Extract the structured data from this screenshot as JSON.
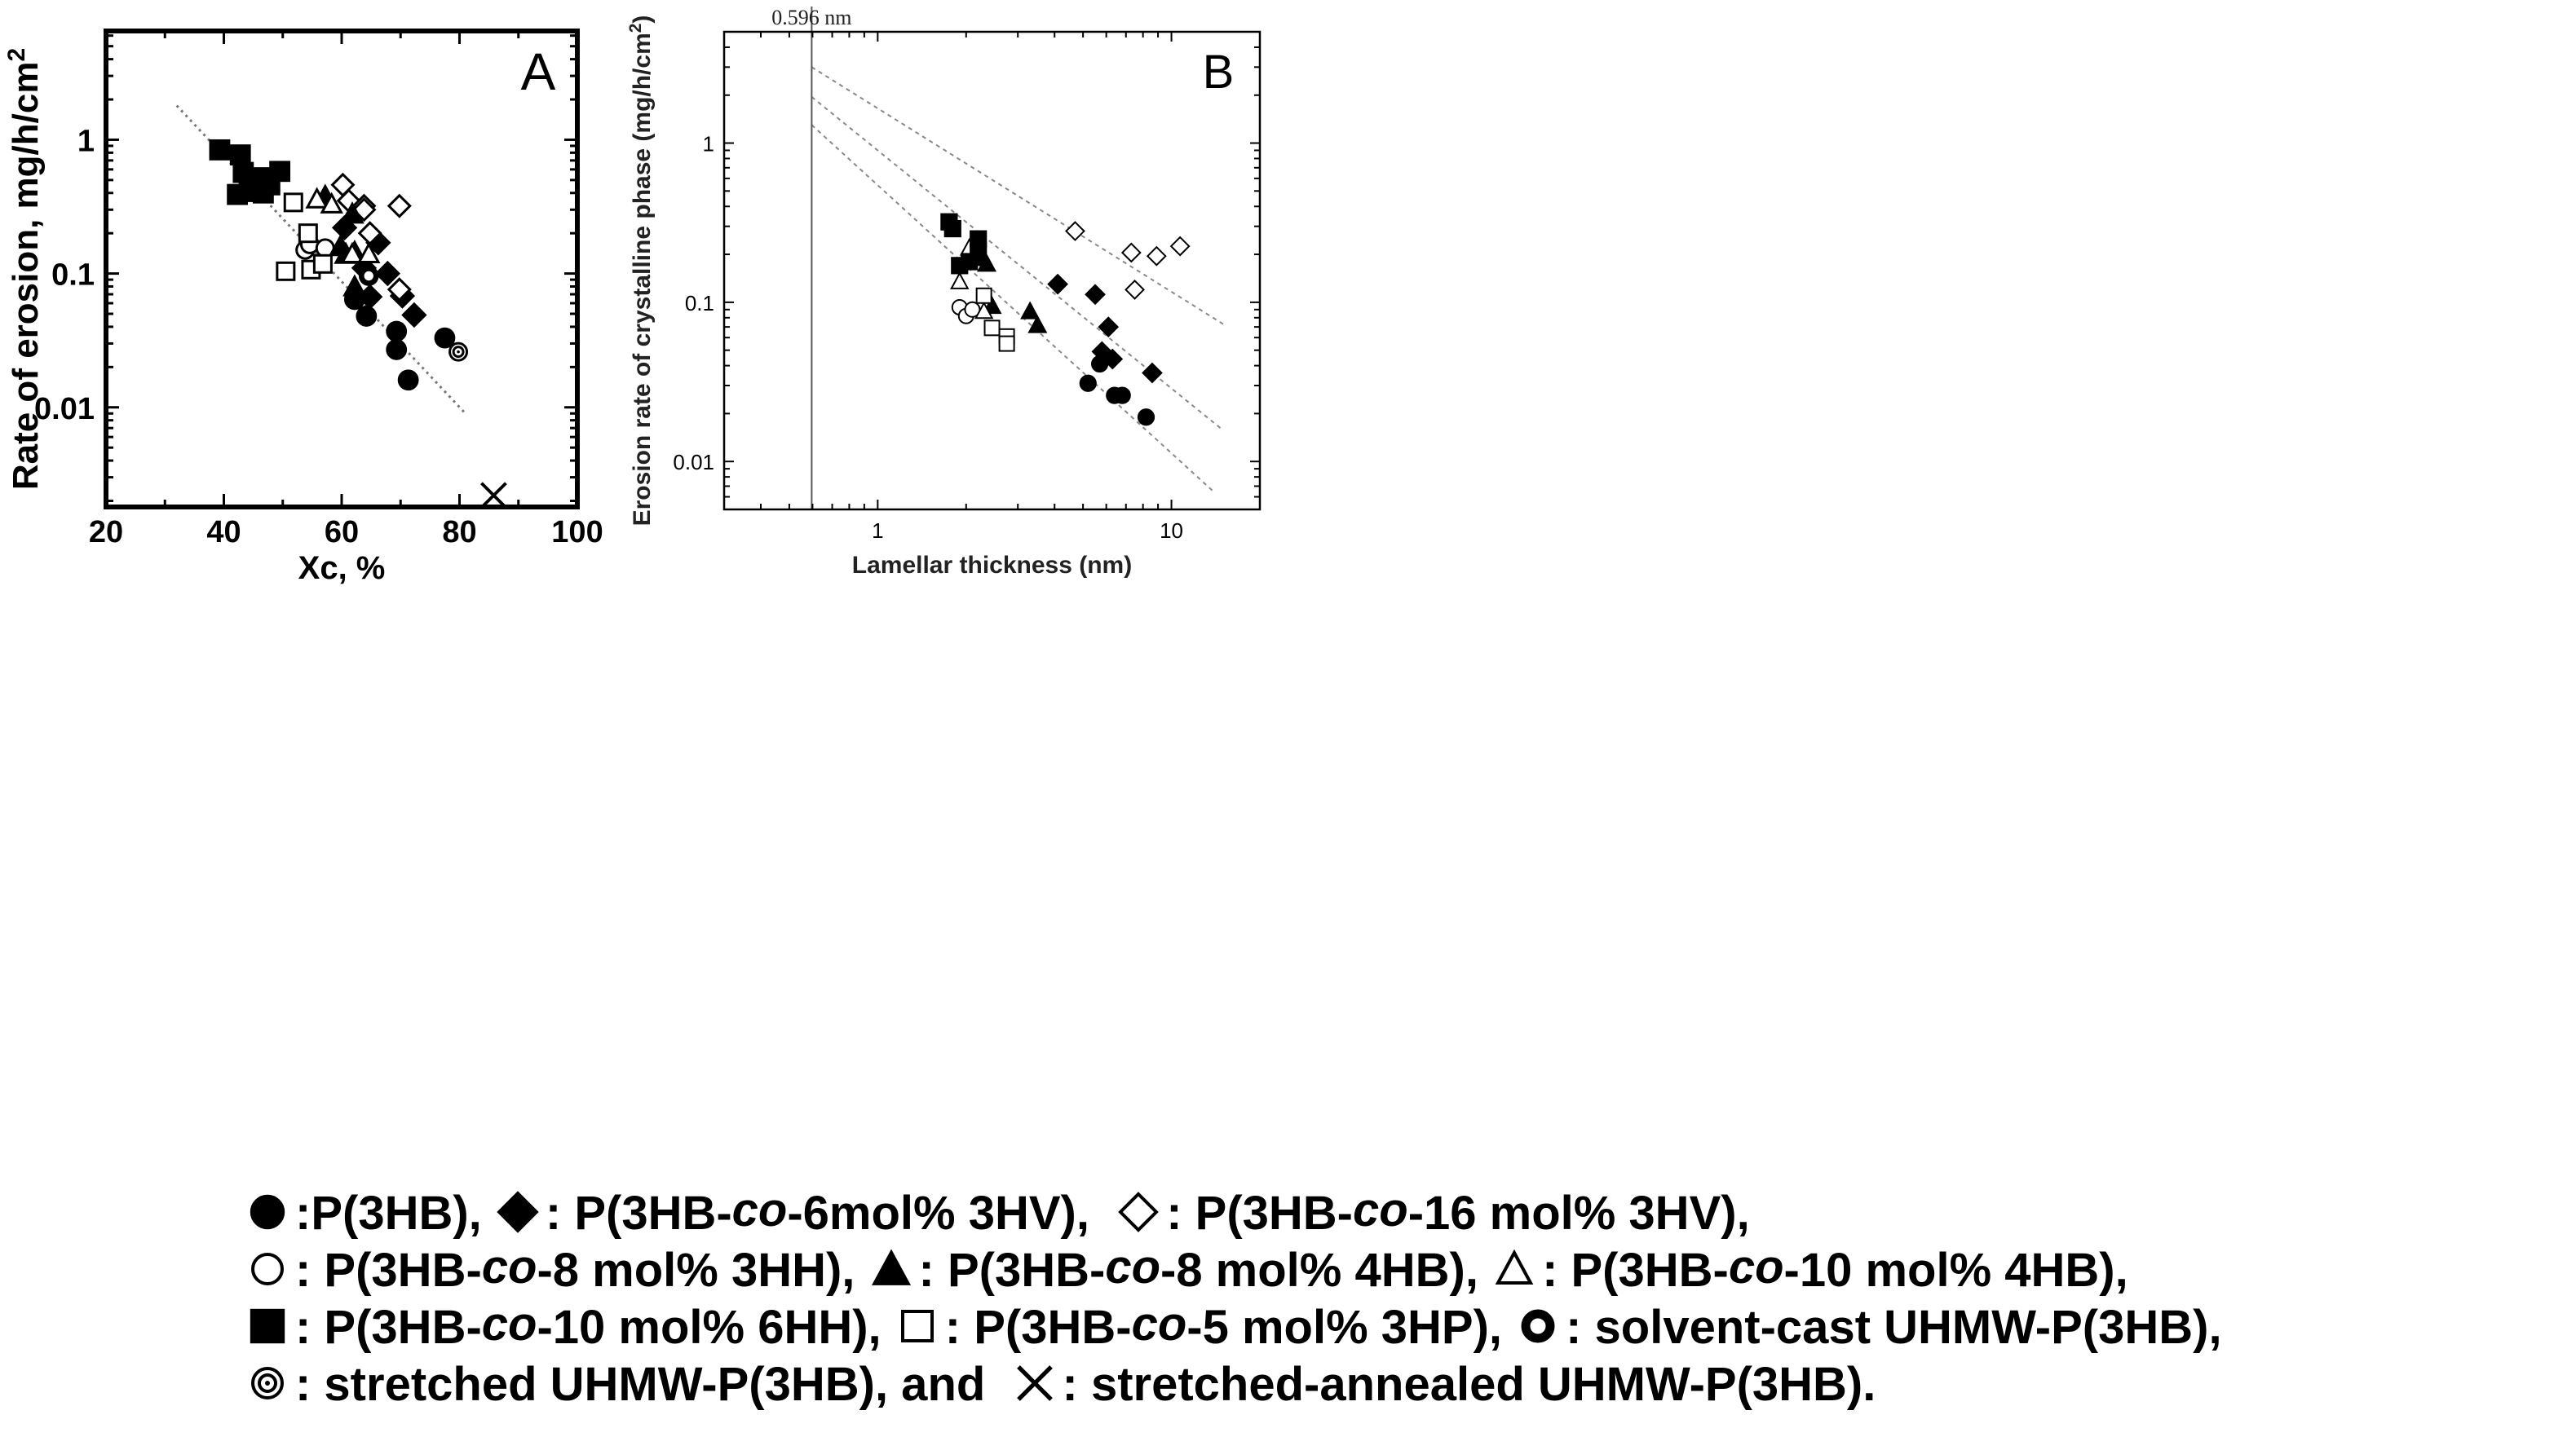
{
  "chart_data": [
    {
      "panel": "A",
      "type": "scatter",
      "xscale": "linear",
      "yscale": "log",
      "xlabel": "Xc, %",
      "ylabel": "Rate of erosion, mg/h/cm",
      "ylabel_sup": "2",
      "xlim": [
        20,
        100
      ],
      "ylim": [
        0.0018,
        6.5
      ],
      "xticks": [
        20,
        40,
        60,
        80,
        100
      ],
      "xtick_labels": [
        "20",
        "40",
        "60",
        "80",
        "100"
      ],
      "yticks": [
        0.01,
        0.1,
        1
      ],
      "ytick_labels": [
        "0.01",
        "0.1",
        "1"
      ],
      "fit_lines": [
        {
          "x": [
            32,
            81
          ],
          "y": [
            1.8,
            0.009
          ]
        }
      ],
      "series": [
        {
          "name": "P(3HB)",
          "marker": "filled-circle",
          "points": [
            [
              62.2,
              0.064
            ],
            [
              64.2,
              0.048
            ],
            [
              69.3,
              0.037
            ],
            [
              69.3,
              0.027
            ],
            [
              71.3,
              0.016
            ],
            [
              77.5,
              0.033
            ]
          ]
        },
        {
          "name": "P(3HB-co-6mol% 3HV)",
          "marker": "filled-diamond",
          "points": [
            [
              60.5,
              0.22
            ],
            [
              66.2,
              0.17
            ],
            [
              67.8,
              0.1
            ],
            [
              70.3,
              0.068
            ],
            [
              72.3,
              0.049
            ],
            [
              63.8,
              0.11
            ],
            [
              64.8,
              0.067
            ]
          ]
        },
        {
          "name": "P(3HB-co-16 mol% 3HV)",
          "marker": "open-diamond",
          "points": [
            [
              60.2,
              0.46
            ],
            [
              61.2,
              0.35
            ],
            [
              63.8,
              0.32
            ],
            [
              63.8,
              0.3
            ],
            [
              69.8,
              0.32
            ],
            [
              64.8,
              0.2
            ],
            [
              69.8,
              0.076
            ]
          ]
        },
        {
          "name": "P(3HB-co-8 mol% 3HH)",
          "marker": "open-circle",
          "points": [
            [
              53.8,
              0.15
            ],
            [
              54.6,
              0.165
            ],
            [
              57.2,
              0.155
            ]
          ]
        },
        {
          "name": "P(3HB-co-8 mol% 4HB)",
          "marker": "filled-triangle",
          "points": [
            [
              57.2,
              0.38
            ],
            [
              61.8,
              0.28
            ],
            [
              59.8,
              0.16
            ],
            [
              62.2,
              0.145
            ],
            [
              60.7,
              0.14
            ],
            [
              62.2,
              0.08
            ]
          ]
        },
        {
          "name": "P(3HB-co-10 mol% 4HB)",
          "marker": "open-triangle",
          "points": [
            [
              55.8,
              0.36
            ],
            [
              58.3,
              0.33
            ],
            [
              61.8,
              0.14
            ],
            [
              64.6,
              0.14
            ]
          ]
        },
        {
          "name": "P(3HB-co-10 mol% 6HH)",
          "marker": "filled-square",
          "points": [
            [
              39.3,
              0.84
            ],
            [
              42.8,
              0.77
            ],
            [
              43.3,
              0.57
            ],
            [
              42.3,
              0.39
            ],
            [
              44.3,
              0.47
            ],
            [
              45.3,
              0.41
            ],
            [
              46.7,
              0.4
            ],
            [
              46.7,
              0.52
            ],
            [
              47.8,
              0.46
            ],
            [
              49.5,
              0.58
            ]
          ]
        },
        {
          "name": "P(3HB-co-5 mol% 3HP)",
          "marker": "open-square",
          "points": [
            [
              51.8,
              0.34
            ],
            [
              54.3,
              0.2
            ],
            [
              50.5,
              0.104
            ],
            [
              54.8,
              0.107
            ],
            [
              56.8,
              0.118
            ]
          ]
        },
        {
          "name": "solvent-cast UHMW-P(3HB)",
          "marker": "bold-ring",
          "points": [
            [
              64.6,
              0.096
            ]
          ]
        },
        {
          "name": "stretched UHMW-P(3HB)",
          "marker": "double-ring",
          "points": [
            [
              79.8,
              0.026
            ]
          ]
        },
        {
          "name": "stretched-annealed UHMW-P(3HB)",
          "marker": "cross",
          "points": [
            [
              85.8,
              0.0022
            ]
          ]
        }
      ],
      "annotation": "A"
    },
    {
      "panel": "B",
      "type": "scatter",
      "xscale": "log",
      "yscale": "log",
      "xlabel": "Lamellar thickness (nm)",
      "ylabel": "Erosion rate of crystalline phase (mg/h/cm",
      "ylabel_sup": "2",
      "ylabel_end": ")",
      "xlim": [
        0.3,
        20
      ],
      "ylim": [
        0.005,
        5
      ],
      "xticks": [
        1,
        10
      ],
      "xtick_labels": [
        "1",
        "10"
      ],
      "yticks": [
        0.01,
        0.1,
        1
      ],
      "ytick_labels": [
        "0.01",
        "0.1",
        "1"
      ],
      "vline": {
        "x": 0.596,
        "label": "0.596 nm"
      },
      "fit_lines": [
        {
          "x": [
            0.596,
            15
          ],
          "y": [
            3.0,
            0.073
          ]
        },
        {
          "x": [
            0.596,
            15
          ],
          "y": [
            1.95,
            0.0157
          ]
        },
        {
          "x": [
            0.596,
            14
          ],
          "y": [
            1.3,
            0.0064
          ]
        }
      ],
      "series": [
        {
          "name": "P(3HB)",
          "marker": "filled-circle",
          "points": [
            [
              5.2,
              0.031
            ],
            [
              5.7,
              0.041
            ],
            [
              6.4,
              0.026
            ],
            [
              6.8,
              0.026
            ],
            [
              8.2,
              0.019
            ]
          ]
        },
        {
          "name": "P(3HB-co-6mol% 3HV)",
          "marker": "filled-diamond",
          "points": [
            [
              4.1,
              0.13
            ],
            [
              5.5,
              0.112
            ],
            [
              6.1,
              0.07
            ],
            [
              5.8,
              0.049
            ],
            [
              6.3,
              0.044
            ],
            [
              8.6,
              0.036
            ]
          ]
        },
        {
          "name": "P(3HB-co-16 mol% 3HV)",
          "marker": "open-diamond",
          "points": [
            [
              4.7,
              0.28
            ],
            [
              7.3,
              0.205
            ],
            [
              8.9,
              0.195
            ],
            [
              10.7,
              0.225
            ],
            [
              7.5,
              0.12
            ]
          ]
        },
        {
          "name": "P(3HB-co-8 mol% 3HH)",
          "marker": "open-circle",
          "points": [
            [
              1.9,
              0.093
            ],
            [
              2.0,
              0.082
            ],
            [
              2.1,
              0.09
            ]
          ]
        },
        {
          "name": "P(3HB-co-8 mol% 4HB)",
          "marker": "filled-triangle",
          "points": [
            [
              2.2,
              0.19
            ],
            [
              2.35,
              0.175
            ],
            [
              2.45,
              0.095
            ],
            [
              3.3,
              0.088
            ],
            [
              3.5,
              0.072
            ]
          ]
        },
        {
          "name": "P(3HB-co-10 mol% 4HB)",
          "marker": "open-triangle",
          "points": [
            [
              2.05,
              0.22
            ],
            [
              1.9,
              0.135
            ],
            [
              2.3,
              0.088
            ]
          ]
        },
        {
          "name": "P(3HB-co-10 mol% 6HH)",
          "marker": "filled-square",
          "points": [
            [
              1.75,
              0.32
            ],
            [
              1.8,
              0.29
            ],
            [
              1.9,
              0.17
            ],
            [
              2.2,
              0.25
            ],
            [
              2.2,
              0.21
            ],
            [
              2.05,
              0.18
            ]
          ]
        },
        {
          "name": "P(3HB-co-5 mol% 3HP)",
          "marker": "open-square",
          "points": [
            [
              2.3,
              0.11
            ],
            [
              2.45,
              0.069
            ],
            [
              2.75,
              0.061
            ],
            [
              2.75,
              0.055
            ]
          ]
        }
      ],
      "annotation": "B"
    }
  ],
  "legend": {
    "lines": [
      [
        {
          "marker": "filled-circle",
          "label": ":P(3HB), "
        },
        {
          "marker": "filled-diamond",
          "label": ": P(3HB-",
          "italic": "co",
          "label_end": "-6mol% 3HV),  "
        },
        {
          "marker": "open-diamond",
          "label": ": P(3HB-",
          "italic": "co",
          "label_end": "-16 mol% 3HV),"
        }
      ],
      [
        {
          "marker": "open-circle",
          "label": ": P(3HB-",
          "italic": "co",
          "label_end": "-8 mol% 3HH), "
        },
        {
          "marker": "filled-triangle",
          "label": ": P(3HB-",
          "italic": "co",
          "label_end": "-8 mol% 4HB), "
        },
        {
          "marker": "open-triangle",
          "label": ": P(3HB-",
          "italic": "co",
          "label_end": "-10 mol% 4HB),"
        }
      ],
      [
        {
          "marker": "filled-square",
          "label": ": P(3HB-",
          "italic": "co",
          "label_end": "-10 mol% 6HH), "
        },
        {
          "marker": "open-square",
          "label": ": P(3HB-",
          "italic": "co",
          "label_end": "-5 mol% 3HP), "
        },
        {
          "marker": "bold-ring",
          "label": ": solvent-cast UHMW-P(3HB),"
        }
      ],
      [
        {
          "marker": "double-ring",
          "label": ": stretched UHMW-P(3HB), and  "
        },
        {
          "marker": "cross",
          "label": ": stretched-annealed UHMW-P(3HB)."
        }
      ]
    ]
  }
}
